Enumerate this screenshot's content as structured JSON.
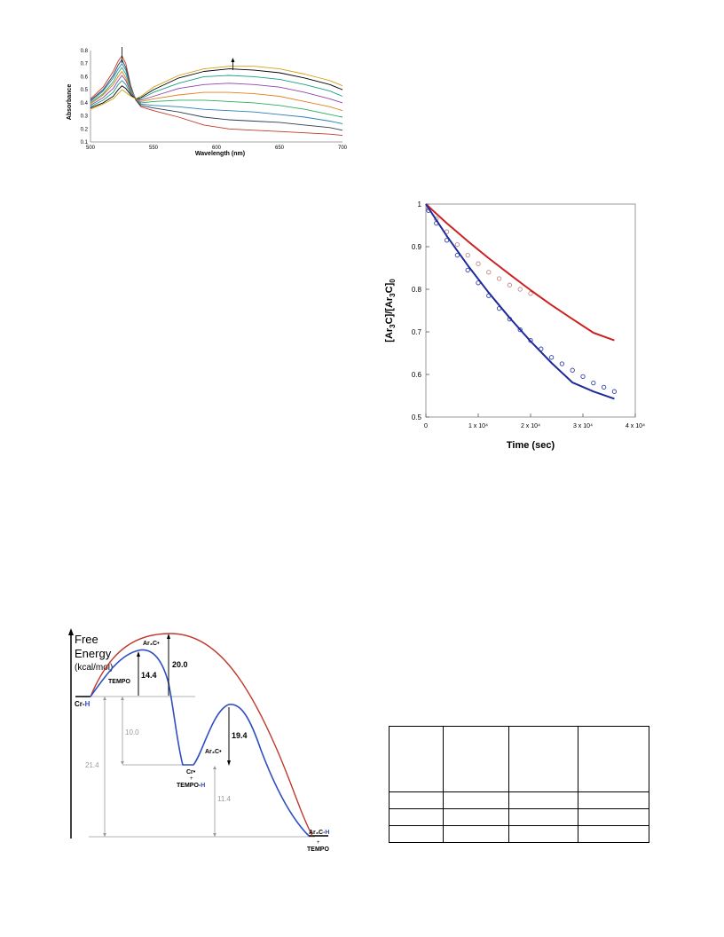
{
  "chart_data": [
    {
      "type": "line",
      "xlabel": "Wavelength (nm)",
      "ylabel": "Absorbance",
      "xlim": [
        500,
        700
      ],
      "ylim": [
        0.1,
        0.8
      ],
      "x_ticks": [
        "500",
        "550",
        "600",
        "650",
        "700"
      ],
      "y_ticks": [
        "0.1",
        "0.2",
        "0.3",
        "0.4",
        "0.5",
        "0.6",
        "0.7",
        "0.8"
      ],
      "grid": false,
      "legend": "none",
      "x": [
        500,
        510,
        518,
        522,
        525,
        528,
        532,
        536,
        540,
        550,
        570,
        590,
        610,
        630,
        650,
        670,
        690,
        700
      ],
      "series": [
        {
          "color": "#c0392b",
          "values": [
            0.43,
            0.52,
            0.64,
            0.72,
            0.76,
            0.7,
            0.53,
            0.42,
            0.37,
            0.34,
            0.29,
            0.23,
            0.2,
            0.19,
            0.18,
            0.17,
            0.16,
            0.15
          ]
        },
        {
          "color": "#2c3e50",
          "values": [
            0.42,
            0.5,
            0.61,
            0.69,
            0.73,
            0.67,
            0.52,
            0.42,
            0.38,
            0.36,
            0.33,
            0.29,
            0.27,
            0.26,
            0.25,
            0.23,
            0.21,
            0.19
          ]
        },
        {
          "color": "#2980b9",
          "values": [
            0.41,
            0.49,
            0.59,
            0.66,
            0.7,
            0.65,
            0.51,
            0.43,
            0.39,
            0.38,
            0.37,
            0.35,
            0.34,
            0.33,
            0.31,
            0.29,
            0.26,
            0.24
          ]
        },
        {
          "color": "#27ae60",
          "values": [
            0.4,
            0.47,
            0.56,
            0.63,
            0.67,
            0.62,
            0.5,
            0.43,
            0.4,
            0.41,
            0.42,
            0.42,
            0.41,
            0.4,
            0.38,
            0.35,
            0.31,
            0.29
          ]
        },
        {
          "color": "#e67e22",
          "values": [
            0.39,
            0.46,
            0.54,
            0.6,
            0.64,
            0.59,
            0.49,
            0.43,
            0.41,
            0.43,
            0.46,
            0.48,
            0.48,
            0.47,
            0.45,
            0.41,
            0.37,
            0.34
          ]
        },
        {
          "color": "#8e44ad",
          "values": [
            0.38,
            0.44,
            0.51,
            0.57,
            0.61,
            0.57,
            0.48,
            0.43,
            0.42,
            0.45,
            0.51,
            0.54,
            0.55,
            0.54,
            0.52,
            0.48,
            0.43,
            0.4
          ]
        },
        {
          "color": "#16a085",
          "values": [
            0.37,
            0.42,
            0.48,
            0.54,
            0.57,
            0.54,
            0.47,
            0.43,
            0.43,
            0.48,
            0.55,
            0.6,
            0.61,
            0.6,
            0.58,
            0.54,
            0.49,
            0.45
          ]
        },
        {
          "color": "#000000",
          "values": [
            0.36,
            0.4,
            0.45,
            0.5,
            0.53,
            0.51,
            0.46,
            0.43,
            0.44,
            0.5,
            0.59,
            0.64,
            0.66,
            0.65,
            0.63,
            0.59,
            0.54,
            0.5
          ]
        },
        {
          "color": "#d4a017",
          "values": [
            0.35,
            0.39,
            0.43,
            0.47,
            0.5,
            0.48,
            0.45,
            0.43,
            0.45,
            0.52,
            0.61,
            0.66,
            0.68,
            0.68,
            0.66,
            0.62,
            0.57,
            0.53
          ]
        }
      ],
      "arrows": [
        {
          "x": 525,
          "direction": "down"
        },
        {
          "x": 613,
          "direction": "up"
        }
      ]
    },
    {
      "type": "scatter",
      "xlabel": "Time (sec)",
      "ylabel": "[Ar3C]/[Ar3C]0",
      "xlim": [
        0,
        40000
      ],
      "ylim": [
        0.5,
        1.0
      ],
      "x_ticks": [
        "0",
        "1 x 10⁴",
        "2 x 10⁴",
        "3 x 10⁴",
        "4 x 10⁴"
      ],
      "y_ticks": [
        "0.5",
        "0.6",
        "0.7",
        "0.8",
        "0.9",
        "1"
      ],
      "grid": false,
      "legend": "none",
      "fit_x": [
        0,
        4000,
        8000,
        12000,
        16000,
        20000,
        24000,
        28000,
        32000,
        36000
      ],
      "series": [
        {
          "color": "#cc2222",
          "kind": "fit",
          "values": [
            1.0,
            0.955,
            0.913,
            0.873,
            0.835,
            0.798,
            0.763,
            0.73,
            0.698,
            0.68
          ]
        },
        {
          "color": "#1f2a9c",
          "kind": "fit",
          "values": [
            1.0,
            0.925,
            0.856,
            0.792,
            0.733,
            0.678,
            0.627,
            0.581,
            0.56,
            0.543
          ]
        }
      ],
      "points": [
        {
          "color": "#c48a8a",
          "x": [
            500,
            2000,
            4000,
            6000,
            8000,
            10000,
            12000,
            14000,
            16000,
            18000,
            20000
          ],
          "y": [
            0.99,
            0.965,
            0.935,
            0.905,
            0.88,
            0.86,
            0.84,
            0.825,
            0.81,
            0.8,
            0.79
          ]
        },
        {
          "color": "#3344aa",
          "x": [
            500,
            2000,
            4000,
            6000,
            8000,
            10000,
            12000,
            14000,
            16000,
            18000,
            20000,
            22000,
            24000,
            26000,
            28000,
            30000,
            32000,
            34000,
            36000
          ],
          "y": [
            0.985,
            0.955,
            0.915,
            0.88,
            0.845,
            0.815,
            0.785,
            0.755,
            0.73,
            0.705,
            0.68,
            0.66,
            0.64,
            0.625,
            0.61,
            0.595,
            0.58,
            0.57,
            0.56
          ]
        }
      ]
    },
    {
      "type": "other",
      "kind": "energy-diagram",
      "ylabel_line1": "Free",
      "ylabel_line2": "Energy",
      "unit": "(kcal/mol)",
      "labels": {
        "cr_h": "Cr-",
        "cr_h_h": "H",
        "tempo_1": "TEMPO",
        "ar3c_top": "Ar₃C•",
        "ar3c_mid": "Ar₃C•",
        "cr_dot": "Cr•",
        "plus_1": "+",
        "tempo_h_a": "TEMPO-",
        "tempo_h_b": "H",
        "product_a": "Ar₃C-",
        "product_b": "H",
        "plus_2": "+",
        "tempo_2": "TEMPO"
      },
      "values": {
        "barrier_blue_1": "14.4",
        "barrier_red": "20.0",
        "intermediate_drop": "10.0",
        "barrier_blue_2": "19.4",
        "total": "21.4",
        "second_drop": "11.4"
      },
      "colors": {
        "blue": "#2e4fbf",
        "red": "#c0392b",
        "guide": "#9a9a9a"
      }
    }
  ],
  "table": {
    "rows": [
      [
        "",
        "",
        "",
        ""
      ],
      [
        "",
        "",
        "",
        ""
      ],
      [
        "",
        "",
        "",
        ""
      ],
      [
        "",
        "",
        "",
        ""
      ]
    ]
  }
}
